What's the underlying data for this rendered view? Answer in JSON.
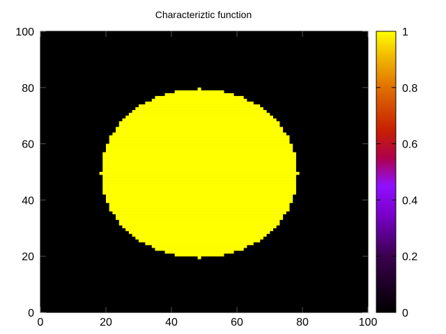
{
  "chart_data": {
    "type": "heatmap",
    "title": "Characteriztic function",
    "xlabel": "",
    "ylabel": "",
    "xlim": [
      0,
      100
    ],
    "ylim": [
      0,
      100
    ],
    "x_ticks": [
      "0",
      "20",
      "40",
      "60",
      "80",
      "100"
    ],
    "y_ticks": [
      "0",
      "20",
      "40",
      "60",
      "80",
      "100"
    ],
    "grid": false,
    "colorbar": {
      "range": [
        0,
        1
      ],
      "ticks": [
        "0",
        "0.2",
        "0.4",
        "0.6",
        "0.8",
        "1"
      ],
      "colormap": "black-purple-red-orange-yellow"
    },
    "field": {
      "description_shape": "disk",
      "value_inside": 1,
      "value_outside": 0,
      "center": [
        48.5,
        49.5
      ],
      "radius_x": 30,
      "radius_y": 30,
      "grid_resolution": 100
    },
    "colors": {
      "background": "#ffffff",
      "value_0": "#000000",
      "value_1": "#ffff00"
    }
  }
}
